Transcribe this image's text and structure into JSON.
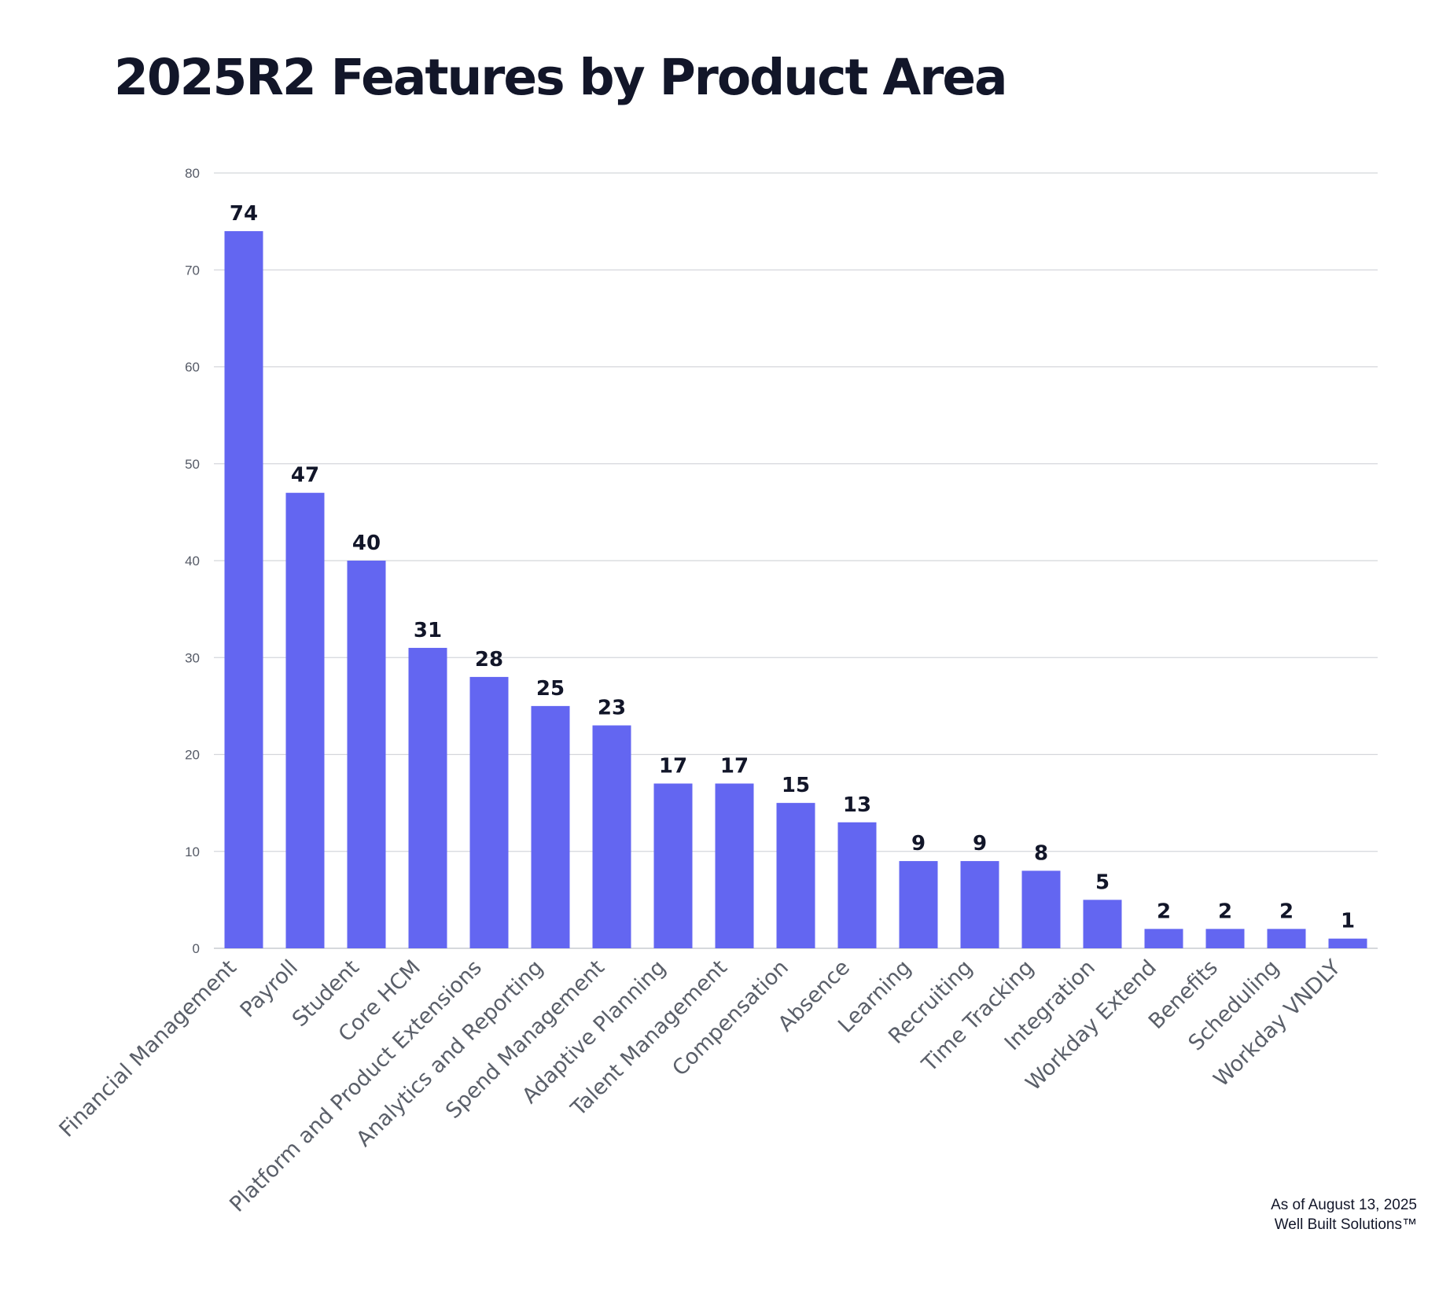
{
  "chart_data": {
    "type": "bar",
    "title": "2025R2 Features by Product Area",
    "xlabel": "",
    "ylabel": "",
    "ylim": [
      0,
      80
    ],
    "yticks": [
      0,
      10,
      20,
      30,
      40,
      50,
      60,
      70,
      80
    ],
    "grid": true,
    "bar_color": "#6366F1",
    "categories": [
      "Financial Management",
      "Payroll",
      "Student",
      "Core HCM",
      "Platform and Product Extensions",
      "Analytics and Reporting",
      "Spend Management",
      "Adaptive Planning",
      "Talent Management",
      "Compensation",
      "Absence",
      "Learning",
      "Recruiting",
      "Time Tracking",
      "Integration",
      "Workday Extend",
      "Benefits",
      "Scheduling",
      "Workday VNDLY"
    ],
    "values": [
      74,
      47,
      40,
      31,
      28,
      25,
      23,
      17,
      17,
      15,
      13,
      9,
      9,
      8,
      5,
      2,
      2,
      2,
      1
    ]
  },
  "footer": {
    "date": "As of August 13, 2025",
    "brand": "Well Built Solutions™"
  }
}
